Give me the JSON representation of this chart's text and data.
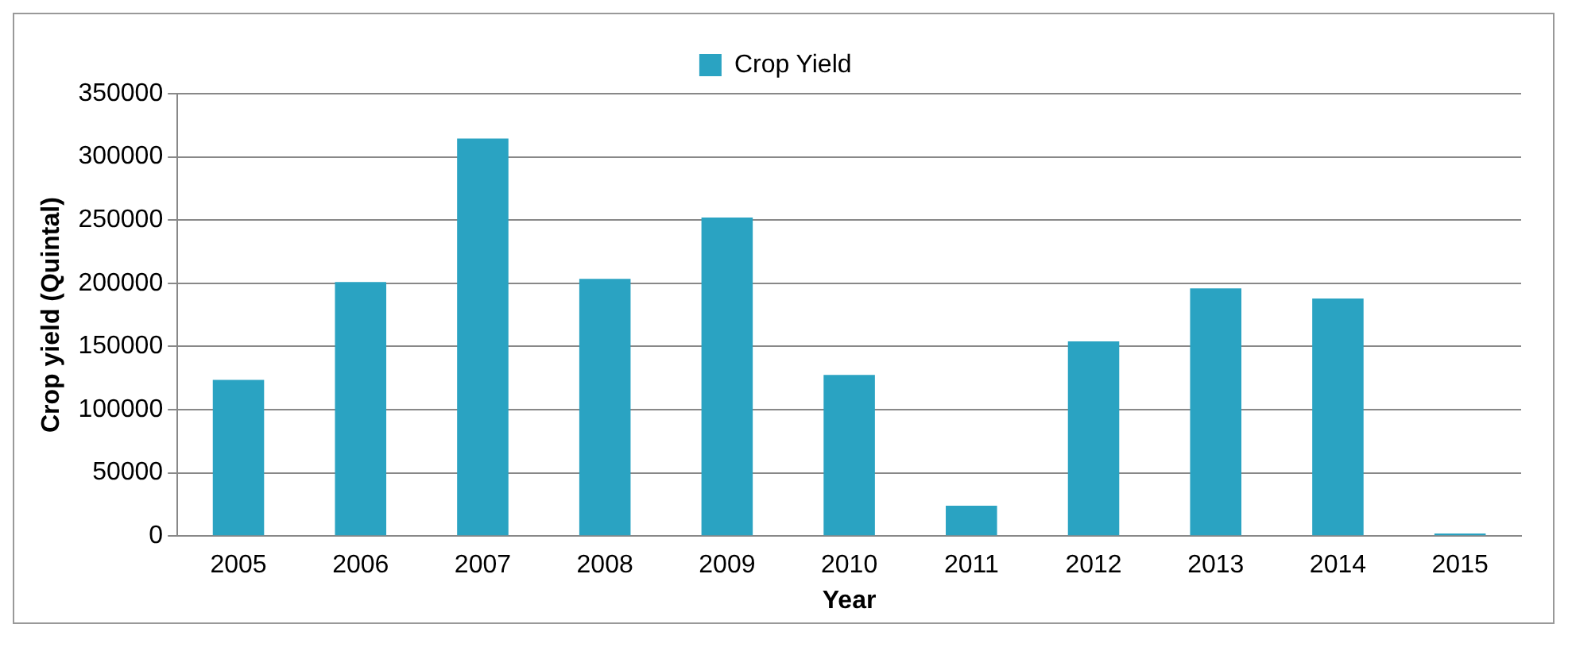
{
  "chart_data": {
    "type": "bar",
    "xlabel": "Year",
    "ylabel": "Crop yield (Quintal)",
    "categories": [
      "2005",
      "2006",
      "2007",
      "2008",
      "2009",
      "2010",
      "2011",
      "2012",
      "2013",
      "2014",
      "2015"
    ],
    "series": [
      {
        "name": "Crop Yield",
        "color": "#2aa3c2",
        "values": [
          123500,
          201000,
          314500,
          203500,
          252000,
          127500,
          24000,
          154000,
          196000,
          188000,
          2000
        ]
      }
    ],
    "ylim": [
      0,
      350000
    ],
    "yticks": [
      0,
      50000,
      100000,
      150000,
      200000,
      250000,
      300000,
      350000
    ],
    "grid": "y",
    "legend": "top"
  }
}
